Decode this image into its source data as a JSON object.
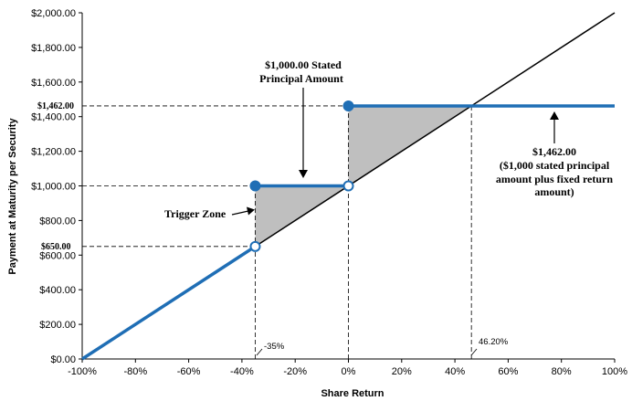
{
  "chart_data": {
    "type": "line",
    "xlabel": "Share Return",
    "ylabel": "Payment at Maturity per Security",
    "xlim": [
      -100,
      100
    ],
    "ylim": [
      0,
      2000
    ],
    "x_ticks": [
      "-100%",
      "-80%",
      "-60%",
      "-40%",
      "-20%",
      "0%",
      "20%",
      "40%",
      "60%",
      "80%",
      "100%"
    ],
    "x_tick_values": [
      -100,
      -80,
      -60,
      -40,
      -20,
      0,
      20,
      40,
      60,
      80,
      100
    ],
    "y_ticks": [
      "$0.00",
      "$200.00",
      "$400.00",
      "$600.00",
      "$800.00",
      "$1,000.00",
      "$1,200.00",
      "$1,400.00",
      "$1,600.00",
      "$1,800.00",
      "$2,000.00"
    ],
    "y_tick_values": [
      0,
      200,
      400,
      600,
      800,
      1000,
      1200,
      1400,
      1600,
      1800,
      2000
    ],
    "grid": false,
    "series": [
      {
        "role": "reference",
        "color": "#000000",
        "points": [
          [
            -100,
            0
          ],
          [
            100,
            2000
          ]
        ]
      },
      {
        "role": "payout",
        "color": "#1f6eb5",
        "segments": [
          [
            [
              -100,
              0
            ],
            [
              -35,
              650
            ]
          ],
          [
            [
              -35,
              1000
            ],
            [
              0,
              1000
            ]
          ],
          [
            [
              0,
              1462
            ],
            [
              100,
              1462
            ]
          ]
        ]
      }
    ],
    "markers": [
      {
        "x": -35,
        "y": 1000,
        "filled": true
      },
      {
        "x": -35,
        "y": 650,
        "filled": false
      },
      {
        "x": 0,
        "y": 1000,
        "filled": false
      },
      {
        "x": 0,
        "y": 1462,
        "filled": true
      }
    ],
    "shaded_regions": [
      {
        "color": "#bfbfbf",
        "points": [
          [
            -35,
            650
          ],
          [
            -35,
            1000
          ],
          [
            0,
            1000
          ]
        ]
      },
      {
        "color": "#bfbfbf",
        "points": [
          [
            0,
            1000
          ],
          [
            0,
            1462
          ],
          [
            46.2,
            1462
          ]
        ]
      }
    ],
    "guides": {
      "vertical": [
        {
          "x": -35,
          "y_top": 1000
        },
        {
          "x": 0,
          "y_top": 1462
        },
        {
          "x": 46.2,
          "y_top": 1462
        }
      ],
      "horizontal": [
        {
          "y": 1462,
          "x_right": 0
        },
        {
          "y": 1000,
          "x_right": -35
        },
        {
          "y": 650,
          "x_right": -35
        }
      ]
    },
    "annotations": {
      "stated_principal_line1": "$1,000.00 Stated",
      "stated_principal_line2": "Principal Amount",
      "payout_line1": "$1,462.00",
      "payout_line2": "($1,000 stated principal",
      "payout_line3": "amount plus fixed return",
      "payout_line4": "amount)",
      "trigger_zone": "Trigger Zone",
      "y_label_1462": "$1,462.00",
      "y_label_650": "$650.00",
      "x_label_trigger": "-35%",
      "x_label_cap": "46.20%"
    }
  }
}
